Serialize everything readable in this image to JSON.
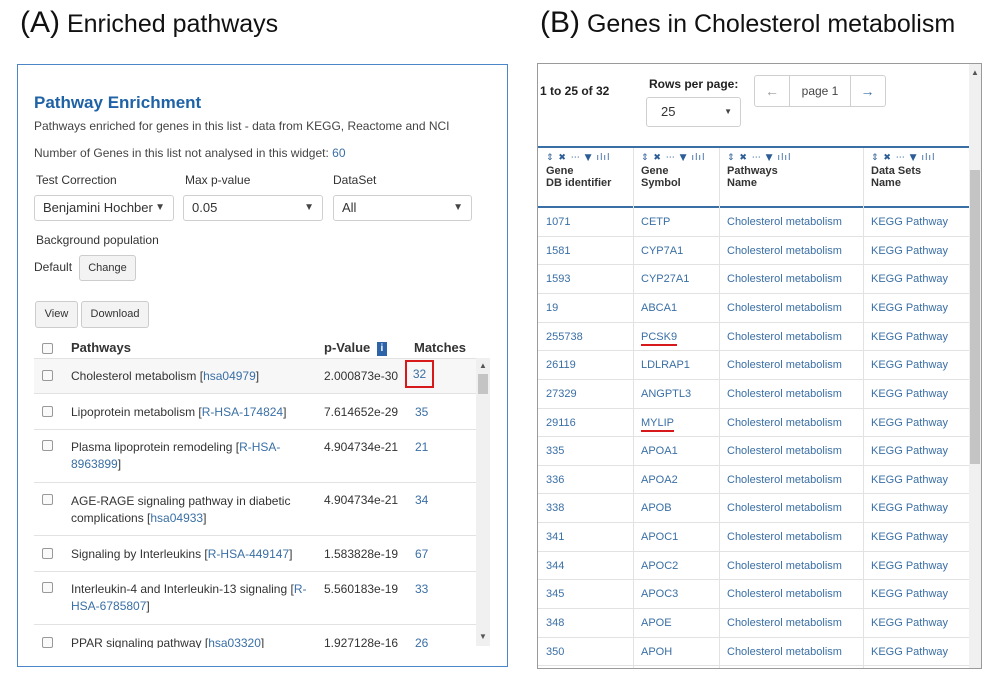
{
  "panel_a": {
    "letter": "(A)",
    "title": "Enriched pathways",
    "widget_title": "Pathway Enrichment",
    "description": "Pathways enriched for genes in this list - data from KEGG, Reactome and NCI",
    "not_analysed_label": "Number of Genes in this list not analysed in this widget:",
    "not_analysed_value": "60",
    "test_correction_label": "Test Correction",
    "test_correction_value": "Benjamini Hochber",
    "max_p_label": "Max p-value",
    "max_p_value": "0.05",
    "dataset_label": "DataSet",
    "dataset_value": "All",
    "background_label": "Background population",
    "default_label": "Default",
    "change_button": "Change",
    "view_button": "View",
    "download_button": "Download",
    "columns": {
      "pathways": "Pathways",
      "pvalue": "p-Value",
      "matches": "Matches"
    },
    "rows": [
      {
        "name": "Cholesterol metabolism [",
        "id": "hsa04979",
        "suffix": "]",
        "pvalue": "2.000873e-30",
        "matches": "32"
      },
      {
        "name": "Lipoprotein metabolism [",
        "id": "R-HSA-174824",
        "suffix": "]",
        "pvalue": "7.614652e-29",
        "matches": "35"
      },
      {
        "name1": "Plasma lipoprotein remodeling [",
        "id1": "R-HSA-",
        "id2": "8963899",
        "suffix": "]",
        "pvalue": "4.904734e-21",
        "matches": "21"
      },
      {
        "name1": "AGE-RAGE signaling pathway in diabetic",
        "name2": "complications [",
        "id": "hsa04933",
        "suffix": "]",
        "pvalue": "4.904734e-21",
        "matches": "34"
      },
      {
        "name": "Signaling by Interleukins [",
        "id": "R-HSA-449147",
        "suffix": "]",
        "pvalue": "1.583828e-19",
        "matches": "67"
      },
      {
        "name1": "Interleukin-4 and Interleukin-13 signaling [",
        "id1": "R-",
        "id2": "HSA-6785807",
        "suffix": "]",
        "pvalue": "5.560183e-19",
        "matches": "33"
      },
      {
        "name": "PPAR signaling pathway [",
        "id": "hsa03320",
        "suffix": "]",
        "pvalue": "1.927128e-16",
        "matches": "26"
      }
    ]
  },
  "panel_b": {
    "letter": "(B)",
    "title": "Genes in Cholesterol metabolism",
    "range": "1 to 25 of 32",
    "rows_per_page_label": "Rows per page:",
    "rows_per_page_value": "25",
    "prev_arrow": "←",
    "page_label": "page 1",
    "next_arrow": "→",
    "header_icons": "⇕ ✖ ⋯ ▼ ılıl",
    "columns": [
      {
        "line1": "Gene",
        "line2": "DB identifier"
      },
      {
        "line1": "Gene",
        "line2": "Symbol"
      },
      {
        "line1": "Pathways",
        "line2": "Name"
      },
      {
        "line1": "Data Sets",
        "line2": "Name"
      }
    ],
    "rows": [
      {
        "id": "1071",
        "symbol": "CETP",
        "pathway": "Cholesterol metabolism",
        "dataset": "KEGG Pathway"
      },
      {
        "id": "1581",
        "symbol": "CYP7A1",
        "pathway": "Cholesterol metabolism",
        "dataset": "KEGG Pathway"
      },
      {
        "id": "1593",
        "symbol": "CYP27A1",
        "pathway": "Cholesterol metabolism",
        "dataset": "KEGG Pathway"
      },
      {
        "id": "19",
        "symbol": "ABCA1",
        "pathway": "Cholesterol metabolism",
        "dataset": "KEGG Pathway"
      },
      {
        "id": "255738",
        "symbol": "PCSK9",
        "pathway": "Cholesterol metabolism",
        "dataset": "KEGG Pathway"
      },
      {
        "id": "26119",
        "symbol": "LDLRAP1",
        "pathway": "Cholesterol metabolism",
        "dataset": "KEGG Pathway"
      },
      {
        "id": "27329",
        "symbol": "ANGPTL3",
        "pathway": "Cholesterol metabolism",
        "dataset": "KEGG Pathway"
      },
      {
        "id": "29116",
        "symbol": "MYLIP",
        "pathway": "Cholesterol metabolism",
        "dataset": "KEGG Pathway"
      },
      {
        "id": "335",
        "symbol": "APOA1",
        "pathway": "Cholesterol metabolism",
        "dataset": "KEGG Pathway"
      },
      {
        "id": "336",
        "symbol": "APOA2",
        "pathway": "Cholesterol metabolism",
        "dataset": "KEGG Pathway"
      },
      {
        "id": "338",
        "symbol": "APOB",
        "pathway": "Cholesterol metabolism",
        "dataset": "KEGG Pathway"
      },
      {
        "id": "341",
        "symbol": "APOC1",
        "pathway": "Cholesterol metabolism",
        "dataset": "KEGG Pathway"
      },
      {
        "id": "344",
        "symbol": "APOC2",
        "pathway": "Cholesterol metabolism",
        "dataset": "KEGG Pathway"
      },
      {
        "id": "345",
        "symbol": "APOC3",
        "pathway": "Cholesterol metabolism",
        "dataset": "KEGG Pathway"
      },
      {
        "id": "348",
        "symbol": "APOE",
        "pathway": "Cholesterol metabolism",
        "dataset": "KEGG Pathway"
      },
      {
        "id": "350",
        "symbol": "APOH",
        "pathway": "Cholesterol metabolism",
        "dataset": "KEGG Pathway"
      }
    ]
  }
}
